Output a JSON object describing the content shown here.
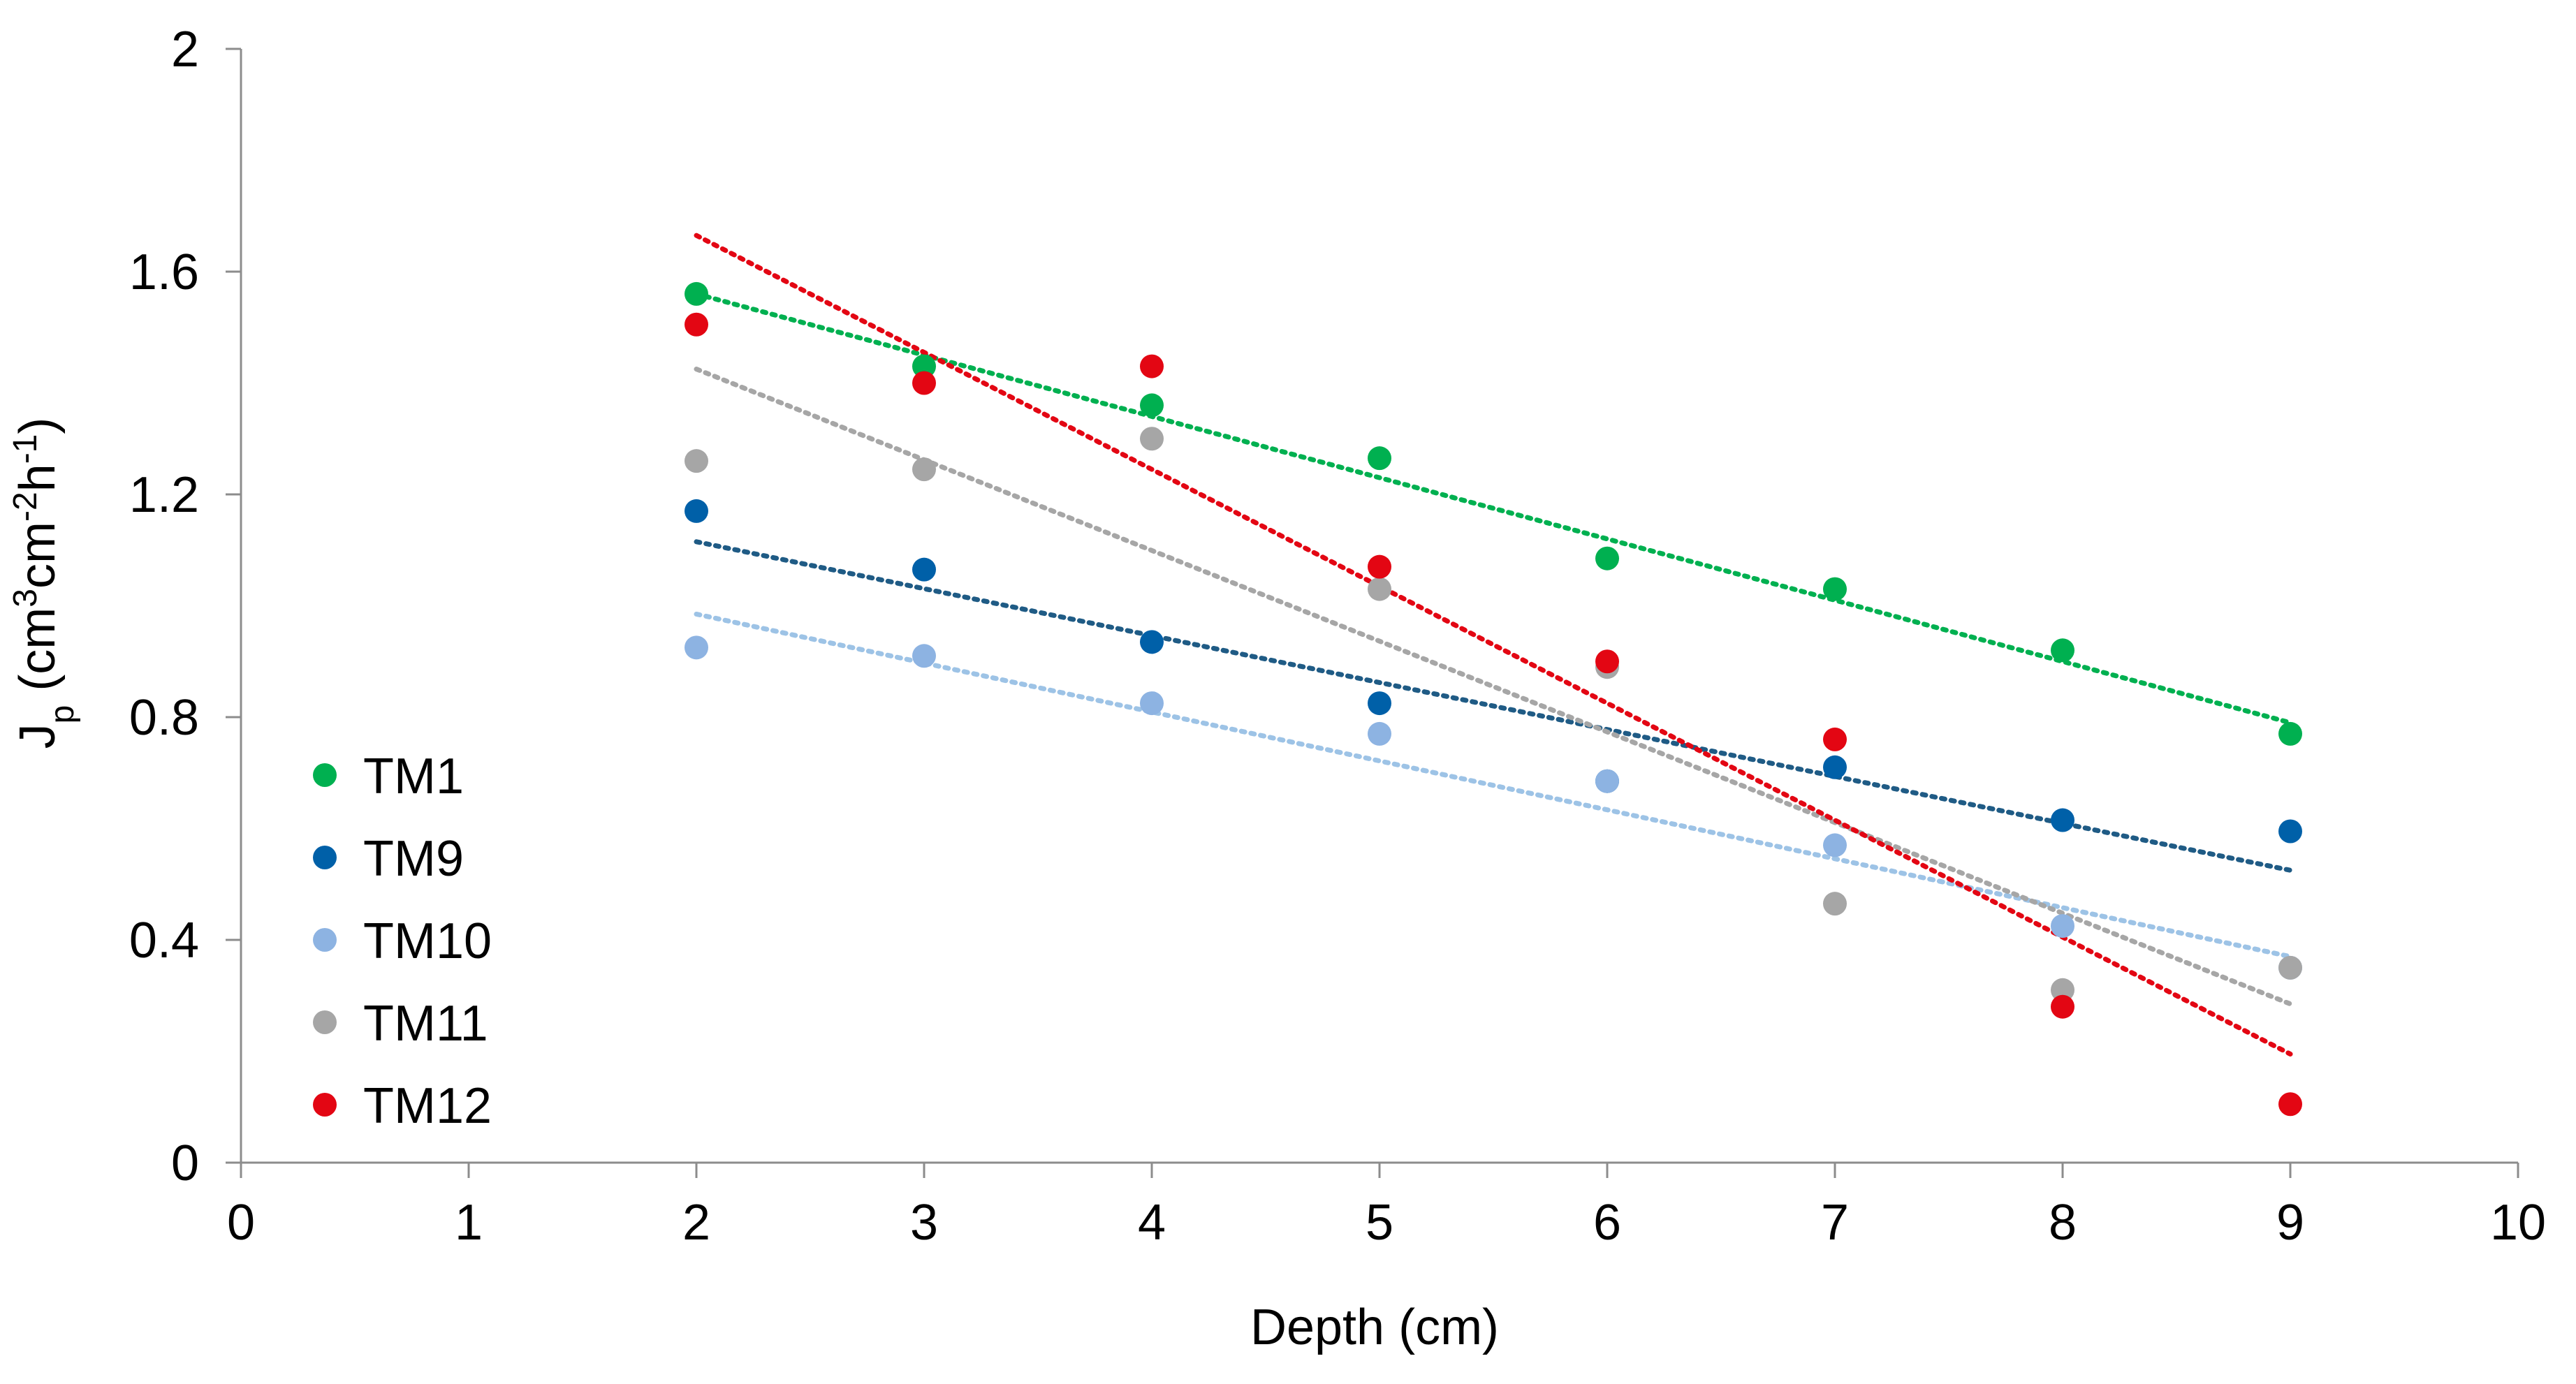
{
  "chart_data": {
    "type": "scatter",
    "title": "",
    "xlabel": "Depth (cm)",
    "ylabel": {
      "prefix": "J",
      "sub": "p",
      "open": " (cm",
      "sup1": "3",
      "mid1": "cm",
      "sup2": "-2",
      "mid2": "h",
      "sup3": "-1",
      "close": ")"
    },
    "xlim": [
      0,
      10
    ],
    "ylim": [
      0,
      2
    ],
    "xticks": [
      0,
      1,
      2,
      3,
      4,
      5,
      6,
      7,
      8,
      9,
      10
    ],
    "xtick_labels": [
      "0",
      "1",
      "2",
      "3",
      "4",
      "5",
      "6",
      "7",
      "8",
      "9",
      "10"
    ],
    "yticks": [
      0,
      0.4,
      0.8,
      1.2,
      1.6,
      2
    ],
    "ytick_labels": [
      "0",
      "0.4",
      "0.8",
      "1.2",
      "1.6",
      "2"
    ],
    "grid": false,
    "legend_position": "left",
    "trendlines": "linear, dotted",
    "series": [
      {
        "name": "TM1",
        "color": "#00b050",
        "x": [
          2,
          3,
          4,
          5,
          6,
          7,
          8,
          9
        ],
        "y": [
          1.56,
          1.43,
          1.36,
          1.265,
          1.085,
          1.03,
          0.92,
          0.77
        ],
        "trend": {
          "x": [
            2,
            9
          ],
          "y": [
            1.56,
            0.79
          ]
        }
      },
      {
        "name": "TM9",
        "color": "#0060a8",
        "trend_color": "#1f5b85",
        "x": [
          2,
          3,
          4,
          5,
          6,
          7,
          8,
          9
        ],
        "y": [
          1.17,
          1.065,
          0.935,
          0.825,
          0.685,
          0.71,
          0.615,
          0.595
        ],
        "trend": {
          "x": [
            2,
            9
          ],
          "y": [
            1.115,
            0.525
          ]
        }
      },
      {
        "name": "TM10",
        "color": "#8db3e2",
        "trend_color": "#9dc3e6",
        "x": [
          2,
          3,
          4,
          5,
          6,
          7,
          8,
          9
        ],
        "y": [
          0.925,
          0.91,
          0.825,
          0.77,
          0.685,
          0.57,
          0.425,
          0.35
        ],
        "trend": {
          "x": [
            2,
            9
          ],
          "y": [
            0.985,
            0.37
          ]
        }
      },
      {
        "name": "TM11",
        "color": "#a6a6a6",
        "x": [
          2,
          3,
          4,
          5,
          6,
          7,
          8,
          9
        ],
        "y": [
          1.26,
          1.245,
          1.3,
          1.03,
          0.89,
          0.465,
          0.31,
          0.35
        ],
        "trend": {
          "x": [
            2,
            9
          ],
          "y": [
            1.425,
            0.285
          ]
        }
      },
      {
        "name": "TM12",
        "color": "#e30613",
        "x": [
          2,
          3,
          4,
          5,
          6,
          7,
          8,
          9
        ],
        "y": [
          1.505,
          1.4,
          1.43,
          1.07,
          0.9,
          0.76,
          0.28,
          0.105
        ],
        "trend": {
          "x": [
            2,
            9
          ],
          "y": [
            1.665,
            0.195
          ]
        }
      }
    ]
  }
}
